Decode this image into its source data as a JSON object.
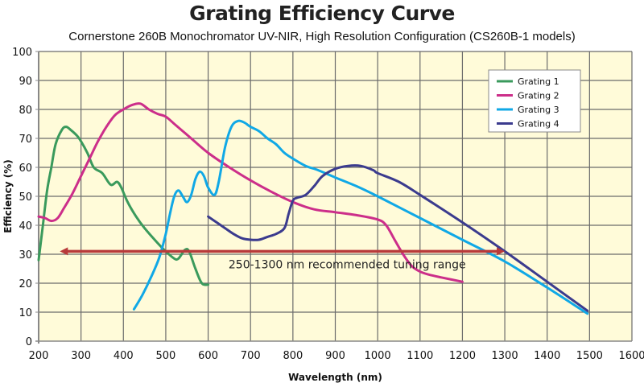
{
  "chart_data": {
    "type": "line",
    "title": "Grating Efficiency Curve",
    "subtitle": "Cornerstone 260B Monochromator UV-NIR, High Resolution Configuration (CS260B-1 models)",
    "xlabel": "Wavelength (nm)",
    "ylabel": "Efficiency (%)",
    "xlim": [
      200,
      1600
    ],
    "ylim": [
      0,
      100
    ],
    "xticks": [
      200,
      300,
      400,
      500,
      600,
      700,
      800,
      900,
      1000,
      1100,
      1200,
      1300,
      1400,
      1500,
      1600
    ],
    "yticks": [
      0,
      10,
      20,
      30,
      40,
      50,
      60,
      70,
      80,
      90,
      100
    ],
    "grid": true,
    "background": "#fffbd9",
    "legend_position": "top-right",
    "series": [
      {
        "name": "Grating 1",
        "color": "#3a9a5c",
        "x": [
          200,
          210,
          220,
          230,
          240,
          255,
          265,
          275,
          290,
          300,
          315,
          330,
          350,
          370,
          385,
          395,
          410,
          430,
          450,
          480,
          500,
          520,
          530,
          545,
          555,
          570,
          585,
          600
        ],
        "y": [
          28,
          40,
          52,
          60,
          68,
          73,
          74,
          73,
          71,
          69,
          65,
          60,
          58,
          54,
          55,
          53,
          48,
          43,
          39,
          34,
          31,
          28.5,
          28.5,
          31.5,
          31,
          25,
          20,
          19.5
        ]
      },
      {
        "name": "Grating 2",
        "color": "#cc2e8a",
        "x": [
          200,
          215,
          230,
          245,
          260,
          280,
          300,
          320,
          340,
          360,
          380,
          400,
          420,
          440,
          460,
          480,
          500,
          520,
          540,
          560,
          600,
          650,
          700,
          750,
          800,
          850,
          900,
          950,
          1000,
          1020,
          1040,
          1060,
          1080,
          1100,
          1120,
          1150,
          1200
        ],
        "y": [
          43,
          42.5,
          41.5,
          42.5,
          46,
          51,
          57,
          63,
          69,
          74,
          78,
          80,
          81.5,
          82,
          80,
          78.5,
          77.5,
          75,
          72.5,
          70,
          65,
          60,
          55.5,
          51.5,
          48,
          45.5,
          44.5,
          43.5,
          42,
          40,
          35,
          30,
          26,
          24,
          23,
          22,
          20.5
        ]
      },
      {
        "name": "Grating 3",
        "color": "#10a8e6",
        "x": [
          425,
          445,
          465,
          485,
          500,
          510,
          520,
          530,
          540,
          550,
          560,
          570,
          580,
          590,
          600,
          615,
          625,
          640,
          655,
          670,
          685,
          700,
          720,
          740,
          760,
          780,
          800,
          830,
          860,
          900,
          950,
          1000,
          1100,
          1200,
          1300,
          1400,
          1495
        ],
        "y": [
          11,
          16,
          22,
          29,
          37,
          44,
          50,
          52,
          50,
          48,
          50.5,
          56,
          58.5,
          57,
          53,
          50.5,
          55,
          67,
          74,
          76,
          75.5,
          74,
          72.5,
          70,
          68,
          65,
          63,
          60.5,
          59,
          56.5,
          53.5,
          50,
          42.5,
          35,
          27.5,
          18.5,
          9.5
        ]
      },
      {
        "name": "Grating 4",
        "color": "#3b3b8e",
        "x": [
          600,
          620,
          640,
          660,
          680,
          700,
          720,
          740,
          760,
          780,
          790,
          800,
          810,
          830,
          850,
          870,
          900,
          930,
          960,
          990,
          1000,
          1050,
          1100,
          1200,
          1300,
          1400,
          1495
        ],
        "y": [
          43,
          41,
          39,
          37,
          35.5,
          35,
          35,
          36,
          37,
          39,
          44,
          48.5,
          49.5,
          50.5,
          53.5,
          57,
          59.5,
          60.5,
          60.5,
          59,
          58,
          55,
          50.5,
          41,
          31,
          20.5,
          10.5
        ]
      }
    ],
    "annotations": [
      {
        "type": "double-arrow",
        "x_range": [
          250,
          1300
        ],
        "y": 31,
        "color": "#b83a3a",
        "text": "250-1300 nm recommended tuning range",
        "text_x": 650,
        "text_y": 26.5
      }
    ]
  }
}
